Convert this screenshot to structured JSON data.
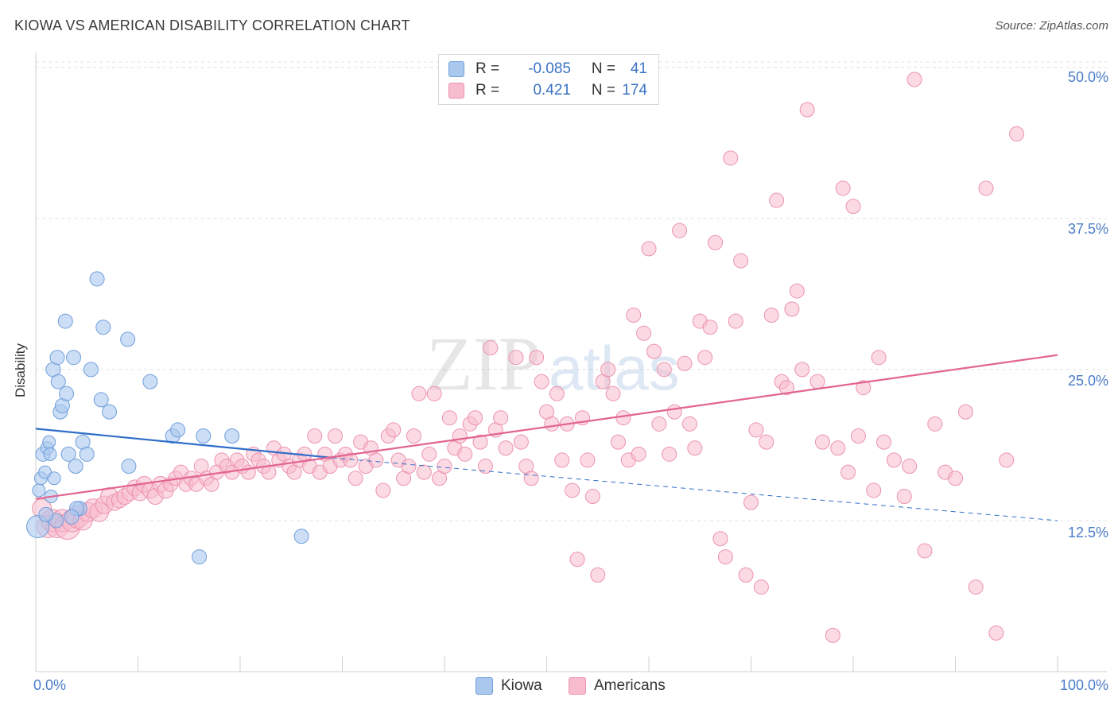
{
  "title": "KIOWA VS AMERICAN DISABILITY CORRELATION CHART",
  "source": "Source: ZipAtlas.com",
  "watermark": "ZIPatlas",
  "legend": {
    "kiowa": {
      "r_label": "R =",
      "r_value": "-0.085",
      "n_label": "N =",
      "n_value": "41"
    },
    "americans": {
      "r_label": "R =",
      "r_value": "0.421",
      "n_label": "N =",
      "n_value": "174"
    }
  },
  "colors": {
    "kiowa_fill": "#aac8ee",
    "kiowa_stroke": "#6f9fdc",
    "kiowa_line": "#2f6ec9",
    "americans_fill": "#f7bccd",
    "americans_stroke": "#ec93ae",
    "americans_line": "#e2658f",
    "tick_text": "#4a7cc7",
    "grid": "#e0e0e0"
  },
  "chart_data": {
    "type": "scatter",
    "title": "KIOWA VS AMERICAN DISABILITY CORRELATION CHART",
    "xlabel": "",
    "ylabel": "Disability",
    "xlim": [
      0,
      100
    ],
    "ylim": [
      0,
      51.5
    ],
    "x_tick_labels": [
      "0.0%",
      "100.0%"
    ],
    "y_ticks": [
      12.5,
      25.0,
      37.5,
      50.0
    ],
    "y_tick_labels": [
      "12.5%",
      "25.0%",
      "37.5%",
      "50.0%"
    ],
    "grid": true,
    "legend_position": "top-center",
    "series": [
      {
        "name": "Kiowa",
        "trend": {
          "x": [
            0,
            29
          ],
          "y": [
            20.1,
            17.7
          ],
          "dashed_to": [
            100,
            12.5
          ]
        },
        "points": [
          [
            0.2,
            12.0,
            14
          ],
          [
            0.3,
            15.0,
            8
          ],
          [
            0.5,
            16.0,
            8
          ],
          [
            0.7,
            18.0,
            9
          ],
          [
            0.9,
            16.5,
            8
          ],
          [
            1.1,
            18.5,
            8
          ],
          [
            1.3,
            19.0,
            8
          ],
          [
            1.4,
            18.0,
            8
          ],
          [
            1.5,
            14.5,
            8
          ],
          [
            1.8,
            16.0,
            8
          ],
          [
            1.7,
            25.0,
            9
          ],
          [
            2.1,
            26.0,
            9
          ],
          [
            2.2,
            24.0,
            9
          ],
          [
            2.4,
            21.5,
            9
          ],
          [
            2.6,
            22.0,
            9
          ],
          [
            2.9,
            29.0,
            9
          ],
          [
            3.0,
            23.0,
            9
          ],
          [
            3.2,
            18.0,
            9
          ],
          [
            3.7,
            26.0,
            9
          ],
          [
            3.9,
            17.0,
            9
          ],
          [
            4.3,
            13.5,
            9
          ],
          [
            4.6,
            19.0,
            9
          ],
          [
            5.0,
            18.0,
            9
          ],
          [
            5.4,
            25.0,
            9
          ],
          [
            6.0,
            32.5,
            9
          ],
          [
            6.4,
            22.5,
            9
          ],
          [
            6.6,
            28.5,
            9
          ],
          [
            7.2,
            21.5,
            9
          ],
          [
            9.0,
            27.5,
            9
          ],
          [
            9.1,
            17.0,
            9
          ],
          [
            11.2,
            24.0,
            9
          ],
          [
            13.4,
            19.5,
            9
          ],
          [
            13.9,
            20.0,
            9
          ],
          [
            16.0,
            9.5,
            9
          ],
          [
            16.4,
            19.5,
            9
          ],
          [
            19.2,
            19.5,
            9
          ],
          [
            26.0,
            11.2,
            9
          ],
          [
            4.0,
            13.5,
            9
          ],
          [
            3.5,
            12.8,
            9
          ],
          [
            2.0,
            12.5,
            9
          ],
          [
            1.0,
            13.0,
            9
          ]
        ]
      },
      {
        "name": "Americans",
        "trend": {
          "x": [
            0,
            100
          ],
          "y": [
            14.3,
            26.2
          ]
        },
        "points": [
          [
            0.6,
            13.5,
            12
          ],
          [
            1.2,
            12.0,
            14
          ],
          [
            1.6,
            12.5,
            14
          ],
          [
            2.1,
            12.0,
            14
          ],
          [
            2.6,
            12.5,
            14
          ],
          [
            3.1,
            12.0,
            16
          ],
          [
            3.6,
            12.5,
            14
          ],
          [
            4.1,
            12.8,
            14
          ],
          [
            4.6,
            12.5,
            12
          ],
          [
            5.1,
            13.2,
            12
          ],
          [
            5.6,
            13.5,
            12
          ],
          [
            6.2,
            13.2,
            12
          ],
          [
            6.7,
            13.8,
            11
          ],
          [
            7.2,
            14.5,
            11
          ],
          [
            7.7,
            14.0,
            10
          ],
          [
            8.2,
            14.2,
            10
          ],
          [
            8.7,
            14.5,
            10
          ],
          [
            9.2,
            14.8,
            10
          ],
          [
            9.7,
            15.2,
            10
          ],
          [
            10.2,
            14.8,
            10
          ],
          [
            10.6,
            15.5,
            10
          ],
          [
            11.2,
            15.0,
            10
          ],
          [
            11.7,
            14.5,
            10
          ],
          [
            12.2,
            15.5,
            10
          ],
          [
            12.7,
            15.0,
            10
          ],
          [
            13.2,
            15.5,
            9
          ],
          [
            13.7,
            16.0,
            9
          ],
          [
            14.2,
            16.5,
            9
          ],
          [
            14.7,
            15.5,
            9
          ],
          [
            15.2,
            16.0,
            9
          ],
          [
            15.7,
            15.5,
            9
          ],
          [
            16.2,
            17.0,
            9
          ],
          [
            16.7,
            16.0,
            9
          ],
          [
            17.2,
            15.5,
            9
          ],
          [
            17.7,
            16.5,
            9
          ],
          [
            18.2,
            17.5,
            9
          ],
          [
            18.7,
            17.0,
            9
          ],
          [
            19.2,
            16.5,
            9
          ],
          [
            19.7,
            17.5,
            9
          ],
          [
            20.2,
            17.0,
            9
          ],
          [
            20.8,
            16.5,
            9
          ],
          [
            21.3,
            18.0,
            9
          ],
          [
            21.8,
            17.5,
            9
          ],
          [
            22.3,
            17.0,
            9
          ],
          [
            22.8,
            16.5,
            9
          ],
          [
            23.3,
            18.5,
            9
          ],
          [
            23.8,
            17.5,
            9
          ],
          [
            24.3,
            18.0,
            9
          ],
          [
            24.8,
            17.0,
            9
          ],
          [
            25.3,
            16.5,
            9
          ],
          [
            25.8,
            17.5,
            9
          ],
          [
            26.3,
            18.0,
            9
          ],
          [
            26.8,
            17.0,
            9
          ],
          [
            27.3,
            19.5,
            9
          ],
          [
            27.8,
            16.5,
            9
          ],
          [
            28.3,
            18.0,
            9
          ],
          [
            28.8,
            17.0,
            9
          ],
          [
            29.3,
            19.5,
            9
          ],
          [
            29.8,
            17.5,
            9
          ],
          [
            30.3,
            18.0,
            9
          ],
          [
            30.8,
            17.5,
            9
          ],
          [
            31.3,
            16.0,
            9
          ],
          [
            31.8,
            19.0,
            9
          ],
          [
            32.3,
            17.0,
            9
          ],
          [
            32.8,
            18.5,
            9
          ],
          [
            33.3,
            17.5,
            9
          ],
          [
            34.0,
            15.0,
            9
          ],
          [
            34.5,
            19.5,
            9
          ],
          [
            35.0,
            20.0,
            9
          ],
          [
            35.5,
            17.5,
            9
          ],
          [
            36.0,
            16.0,
            9
          ],
          [
            36.5,
            17.0,
            9
          ],
          [
            37.0,
            19.5,
            9
          ],
          [
            37.5,
            23.0,
            9
          ],
          [
            38.0,
            16.5,
            9
          ],
          [
            38.5,
            18.0,
            9
          ],
          [
            39.0,
            23.0,
            9
          ],
          [
            39.5,
            16.0,
            9
          ],
          [
            40.0,
            17.0,
            9
          ],
          [
            40.5,
            21.0,
            9
          ],
          [
            41.0,
            18.5,
            9
          ],
          [
            41.5,
            19.5,
            9
          ],
          [
            42.0,
            18.0,
            9
          ],
          [
            42.5,
            20.5,
            9
          ],
          [
            43.0,
            21.0,
            9
          ],
          [
            43.5,
            19.0,
            9
          ],
          [
            44.0,
            17.0,
            9
          ],
          [
            44.5,
            26.8,
            9
          ],
          [
            45.0,
            20.0,
            9
          ],
          [
            45.5,
            21.0,
            9
          ],
          [
            46.0,
            18.5,
            9
          ],
          [
            47.0,
            26.0,
            9
          ],
          [
            47.5,
            19.0,
            9
          ],
          [
            48.0,
            17.0,
            9
          ],
          [
            48.5,
            16.0,
            9
          ],
          [
            49.0,
            26.0,
            9
          ],
          [
            49.5,
            24.0,
            9
          ],
          [
            50.0,
            21.5,
            9
          ],
          [
            50.5,
            20.5,
            9
          ],
          [
            51.0,
            23.0,
            9
          ],
          [
            51.5,
            17.5,
            9
          ],
          [
            52.0,
            20.5,
            9
          ],
          [
            52.5,
            15.0,
            9
          ],
          [
            53.0,
            9.3,
            9
          ],
          [
            53.5,
            21.0,
            9
          ],
          [
            54.0,
            17.5,
            9
          ],
          [
            54.5,
            14.5,
            9
          ],
          [
            55.0,
            8.0,
            9
          ],
          [
            55.5,
            24.0,
            9
          ],
          [
            56.0,
            25.0,
            9
          ],
          [
            56.5,
            23.0,
            9
          ],
          [
            57.0,
            19.0,
            9
          ],
          [
            57.5,
            21.0,
            9
          ],
          [
            58.0,
            17.5,
            9
          ],
          [
            58.5,
            29.5,
            9
          ],
          [
            59.0,
            18.0,
            9
          ],
          [
            59.5,
            28.0,
            9
          ],
          [
            60.0,
            35.0,
            9
          ],
          [
            60.5,
            26.5,
            9
          ],
          [
            61.0,
            20.5,
            9
          ],
          [
            61.5,
            25.0,
            9
          ],
          [
            62.0,
            18.0,
            9
          ],
          [
            62.5,
            21.5,
            9
          ],
          [
            63.0,
            36.5,
            9
          ],
          [
            63.5,
            25.5,
            9
          ],
          [
            64.0,
            20.5,
            9
          ],
          [
            64.5,
            18.5,
            9
          ],
          [
            65.0,
            29.0,
            9
          ],
          [
            65.5,
            26.0,
            9
          ],
          [
            66.0,
            28.5,
            9
          ],
          [
            66.5,
            35.5,
            9
          ],
          [
            67.0,
            11.0,
            9
          ],
          [
            67.5,
            9.5,
            9
          ],
          [
            68.0,
            42.5,
            9
          ],
          [
            68.5,
            29.0,
            9
          ],
          [
            69.0,
            34.0,
            9
          ],
          [
            69.5,
            8.0,
            9
          ],
          [
            70.0,
            14.0,
            9
          ],
          [
            70.5,
            20.0,
            9
          ],
          [
            71.0,
            7.0,
            9
          ],
          [
            71.5,
            19.0,
            9
          ],
          [
            72.0,
            29.5,
            9
          ],
          [
            72.5,
            39.0,
            9
          ],
          [
            73.0,
            24.0,
            9
          ],
          [
            73.5,
            23.5,
            9
          ],
          [
            74.0,
            30.0,
            9
          ],
          [
            74.5,
            31.5,
            9
          ],
          [
            75.0,
            25.0,
            9
          ],
          [
            75.5,
            46.5,
            9
          ],
          [
            76.5,
            24.0,
            9
          ],
          [
            77.0,
            19.0,
            9
          ],
          [
            78.0,
            3.0,
            9
          ],
          [
            78.5,
            18.5,
            9
          ],
          [
            79.0,
            40.0,
            9
          ],
          [
            79.5,
            16.5,
            9
          ],
          [
            80.0,
            38.5,
            9
          ],
          [
            80.5,
            19.5,
            9
          ],
          [
            81.0,
            23.5,
            9
          ],
          [
            82.0,
            15.0,
            9
          ],
          [
            82.5,
            26.0,
            9
          ],
          [
            83.0,
            19.0,
            9
          ],
          [
            84.0,
            17.5,
            9
          ],
          [
            85.0,
            14.5,
            9
          ],
          [
            85.5,
            17.0,
            9
          ],
          [
            86.0,
            49.0,
            9
          ],
          [
            87.0,
            10.0,
            9
          ],
          [
            88.0,
            20.5,
            9
          ],
          [
            89.0,
            16.5,
            9
          ],
          [
            90.0,
            16.0,
            9
          ],
          [
            91.0,
            21.5,
            9
          ],
          [
            92.0,
            7.0,
            9
          ],
          [
            93.0,
            40.0,
            9
          ],
          [
            94.0,
            3.2,
            9
          ],
          [
            95.0,
            17.5,
            9
          ],
          [
            96.0,
            44.5,
            9
          ]
        ]
      }
    ]
  },
  "bottom_legend": {
    "kiowa": "Kiowa",
    "americans": "Americans"
  }
}
